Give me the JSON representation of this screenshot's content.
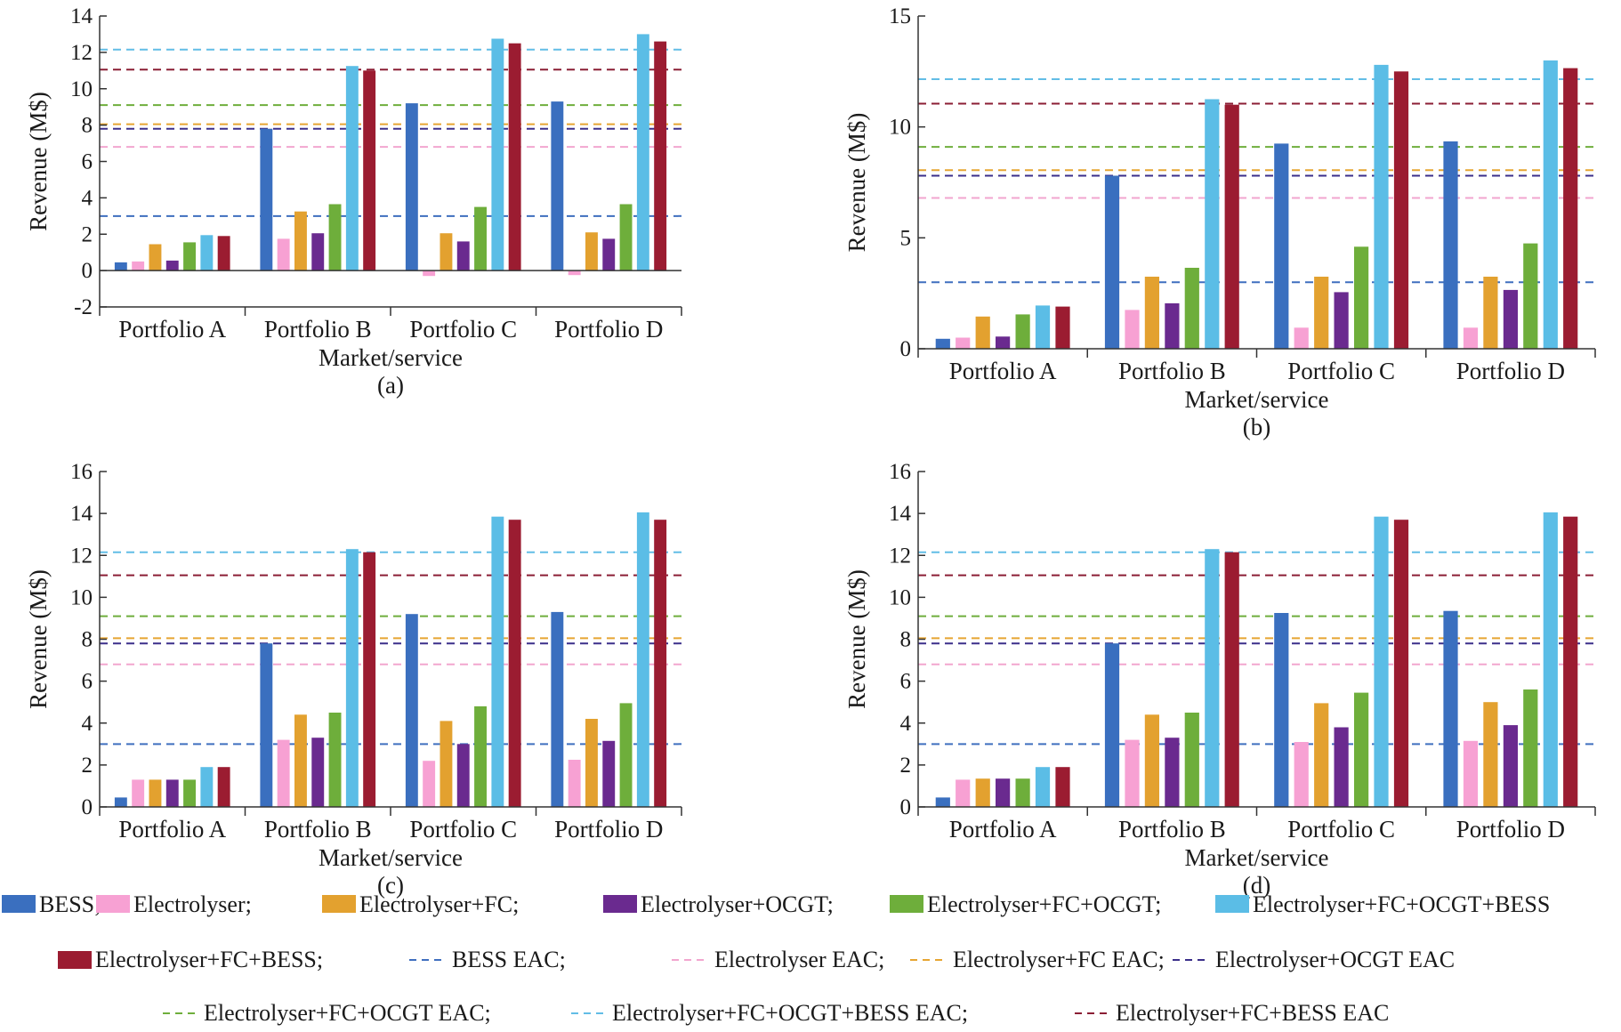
{
  "colors": {
    "BESS": "#3a6fbf",
    "Electrolyser": "#f7a1d3",
    "Electrolyser+FC": "#e3a12f",
    "Electrolyser+OCGT": "#6a2a8f",
    "Electrolyser+FC+OCGT": "#6eae3b",
    "Electrolyser+FC+OCGT+BESS": "#5bbde6",
    "Electrolyser+FC+BESS": "#9b1c31",
    "BESS EAC": "#3f6fbf",
    "Electrolyser EAC": "#f2a6cf",
    "Electrolyser+FC EAC": "#e6a532",
    "Electrolyser+OCGT EAC": "#3b2f8a",
    "Electrolyser+FC+OCGT EAC": "#6fae3c",
    "Electrolyser+FC+OCGT+BESS EAC": "#62bde6",
    "Electrolyser+FC+BESS EAC": "#8b1e35"
  },
  "legend": {
    "bar_entries": [
      "BESS;",
      "Electrolyser;",
      "Electrolyser+FC;",
      "Electrolyser+OCGT;",
      "Electrolyser+FC+OCGT;",
      "Electrolyser+FC+OCGT+BESS",
      "Electrolyser+FC+BESS;"
    ],
    "line_entries": [
      "BESS EAC;",
      "Electrolyser EAC;",
      "Electrolyser+FC EAC;",
      "Electrolyser+OCGT EAC",
      "Electrolyser+FC+OCGT EAC;",
      "Electrolyser+FC+OCGT+BESS EAC;",
      "Electrolyser+FC+BESS EAC"
    ]
  },
  "chart_data": [
    {
      "type": "bar",
      "panel_label": "(a)",
      "xlabel": "Market/service",
      "ylabel": "Revenue (M$)",
      "ylim": [
        -2,
        14
      ],
      "yticks": [
        -2,
        0,
        2,
        4,
        6,
        8,
        10,
        12,
        14
      ],
      "ytick_labels": [
        "-2",
        "0",
        "2",
        "4",
        "6",
        "8",
        "10",
        "12",
        "14"
      ],
      "grid": false,
      "categories": [
        "Portfolio A",
        "Portfolio B",
        "Portfolio C",
        "Portfolio D"
      ],
      "series": [
        {
          "name": "BESS",
          "values": [
            0.45,
            7.8,
            9.2,
            9.3
          ]
        },
        {
          "name": "Electrolyser",
          "values": [
            0.5,
            1.75,
            -0.3,
            -0.25
          ]
        },
        {
          "name": "Electrolyser+FC",
          "values": [
            1.45,
            3.25,
            2.05,
            2.1
          ]
        },
        {
          "name": "Electrolyser+OCGT",
          "values": [
            0.55,
            2.05,
            1.6,
            1.75
          ]
        },
        {
          "name": "Electrolyser+FC+OCGT",
          "values": [
            1.55,
            3.65,
            3.5,
            3.65
          ]
        },
        {
          "name": "Electrolyser+FC+OCGT+BESS",
          "values": [
            1.95,
            11.25,
            12.75,
            13.0
          ]
        },
        {
          "name": "Electrolyser+FC+BESS",
          "values": [
            1.9,
            11.0,
            12.5,
            12.6
          ]
        }
      ],
      "eac_lines": [
        {
          "name": "BESS EAC",
          "value": 3.0
        },
        {
          "name": "Electrolyser EAC",
          "value": 6.8
        },
        {
          "name": "Electrolyser+FC EAC",
          "value": 8.05
        },
        {
          "name": "Electrolyser+OCGT EAC",
          "value": 7.8
        },
        {
          "name": "Electrolyser+FC+OCGT EAC",
          "value": 9.1
        },
        {
          "name": "Electrolyser+FC+OCGT+BESS EAC",
          "value": 12.15
        },
        {
          "name": "Electrolyser+FC+BESS EAC",
          "value": 11.05
        }
      ]
    },
    {
      "type": "bar",
      "panel_label": "(b)",
      "xlabel": "Market/service",
      "ylabel": "Revenue (M$)",
      "ylim": [
        0,
        15
      ],
      "yticks": [
        0,
        5,
        10,
        15
      ],
      "ytick_labels": [
        "0",
        "5",
        "10",
        "15"
      ],
      "grid": false,
      "categories": [
        "Portfolio A",
        "Portfolio B",
        "Portfolio C",
        "Portfolio D"
      ],
      "series": [
        {
          "name": "BESS",
          "values": [
            0.45,
            7.8,
            9.25,
            9.35
          ]
        },
        {
          "name": "Electrolyser",
          "values": [
            0.5,
            1.75,
            0.95,
            0.95
          ]
        },
        {
          "name": "Electrolyser+FC",
          "values": [
            1.45,
            3.25,
            3.25,
            3.25
          ]
        },
        {
          "name": "Electrolyser+OCGT",
          "values": [
            0.55,
            2.05,
            2.55,
            2.65
          ]
        },
        {
          "name": "Electrolyser+FC+OCGT",
          "values": [
            1.55,
            3.65,
            4.6,
            4.75
          ]
        },
        {
          "name": "Electrolyser+FC+OCGT+BESS",
          "values": [
            1.95,
            11.25,
            12.8,
            13.0
          ]
        },
        {
          "name": "Electrolyser+FC+BESS",
          "values": [
            1.9,
            11.0,
            12.5,
            12.65
          ]
        }
      ],
      "eac_lines": [
        {
          "name": "BESS EAC",
          "value": 3.0
        },
        {
          "name": "Electrolyser EAC",
          "value": 6.8
        },
        {
          "name": "Electrolyser+FC EAC",
          "value": 8.05
        },
        {
          "name": "Electrolyser+OCGT EAC",
          "value": 7.8
        },
        {
          "name": "Electrolyser+FC+OCGT EAC",
          "value": 9.1
        },
        {
          "name": "Electrolyser+FC+OCGT+BESS EAC",
          "value": 12.15
        },
        {
          "name": "Electrolyser+FC+BESS EAC",
          "value": 11.05
        }
      ]
    },
    {
      "type": "bar",
      "panel_label": "(c)",
      "xlabel": "Market/service",
      "ylabel": "Revenue (M$)",
      "ylim": [
        0,
        16
      ],
      "yticks": [
        0,
        2,
        4,
        6,
        8,
        10,
        12,
        14,
        16
      ],
      "ytick_labels": [
        "0",
        "2",
        "4",
        "6",
        "8",
        "10",
        "12",
        "14",
        "16"
      ],
      "grid": false,
      "categories": [
        "Portfolio A",
        "Portfolio B",
        "Portfolio C",
        "Portfolio D"
      ],
      "series": [
        {
          "name": "BESS",
          "values": [
            0.45,
            7.8,
            9.2,
            9.3
          ]
        },
        {
          "name": "Electrolyser",
          "values": [
            1.3,
            3.2,
            2.2,
            2.25
          ]
        },
        {
          "name": "Electrolyser+FC",
          "values": [
            1.3,
            4.4,
            4.1,
            4.2
          ]
        },
        {
          "name": "Electrolyser+OCGT",
          "values": [
            1.3,
            3.3,
            3.0,
            3.15
          ]
        },
        {
          "name": "Electrolyser+FC+OCGT",
          "values": [
            1.3,
            4.5,
            4.8,
            4.95
          ]
        },
        {
          "name": "Electrolyser+FC+OCGT+BESS",
          "values": [
            1.9,
            12.3,
            13.85,
            14.05
          ]
        },
        {
          "name": "Electrolyser+FC+BESS",
          "values": [
            1.9,
            12.15,
            13.7,
            13.7
          ]
        }
      ],
      "eac_lines": [
        {
          "name": "BESS EAC",
          "value": 3.0
        },
        {
          "name": "Electrolyser EAC",
          "value": 6.8
        },
        {
          "name": "Electrolyser+FC EAC",
          "value": 8.05
        },
        {
          "name": "Electrolyser+OCGT EAC",
          "value": 7.8
        },
        {
          "name": "Electrolyser+FC+OCGT EAC",
          "value": 9.1
        },
        {
          "name": "Electrolyser+FC+OCGT+BESS EAC",
          "value": 12.15
        },
        {
          "name": "Electrolyser+FC+BESS EAC",
          "value": 11.05
        }
      ]
    },
    {
      "type": "bar",
      "panel_label": "(d)",
      "xlabel": "Market/service",
      "ylabel": "Revenue (M$)",
      "ylim": [
        0,
        16
      ],
      "yticks": [
        0,
        2,
        4,
        6,
        8,
        10,
        12,
        14,
        16
      ],
      "ytick_labels": [
        "0",
        "2",
        "4",
        "6",
        "8",
        "10",
        "12",
        "14",
        "16"
      ],
      "grid": false,
      "categories": [
        "Portfolio A",
        "Portfolio B",
        "Portfolio C",
        "Portfolio D"
      ],
      "series": [
        {
          "name": "BESS",
          "values": [
            0.45,
            7.8,
            9.25,
            9.35
          ]
        },
        {
          "name": "Electrolyser",
          "values": [
            1.3,
            3.2,
            3.1,
            3.15
          ]
        },
        {
          "name": "Electrolyser+FC",
          "values": [
            1.35,
            4.4,
            4.95,
            5.0
          ]
        },
        {
          "name": "Electrolyser+OCGT",
          "values": [
            1.35,
            3.3,
            3.8,
            3.9
          ]
        },
        {
          "name": "Electrolyser+FC+OCGT",
          "values": [
            1.35,
            4.5,
            5.45,
            5.6
          ]
        },
        {
          "name": "Electrolyser+FC+OCGT+BESS",
          "values": [
            1.9,
            12.3,
            13.85,
            14.05
          ]
        },
        {
          "name": "Electrolyser+FC+BESS",
          "values": [
            1.9,
            12.15,
            13.7,
            13.85
          ]
        }
      ],
      "eac_lines": [
        {
          "name": "BESS EAC",
          "value": 3.0
        },
        {
          "name": "Electrolyser EAC",
          "value": 6.8
        },
        {
          "name": "Electrolyser+FC EAC",
          "value": 8.05
        },
        {
          "name": "Electrolyser+OCGT EAC",
          "value": 7.8
        },
        {
          "name": "Electrolyser+FC+OCGT EAC",
          "value": 9.1
        },
        {
          "name": "Electrolyser+FC+OCGT+BESS EAC",
          "value": 12.15
        },
        {
          "name": "Electrolyser+FC+BESS EAC",
          "value": 11.05
        }
      ]
    }
  ]
}
